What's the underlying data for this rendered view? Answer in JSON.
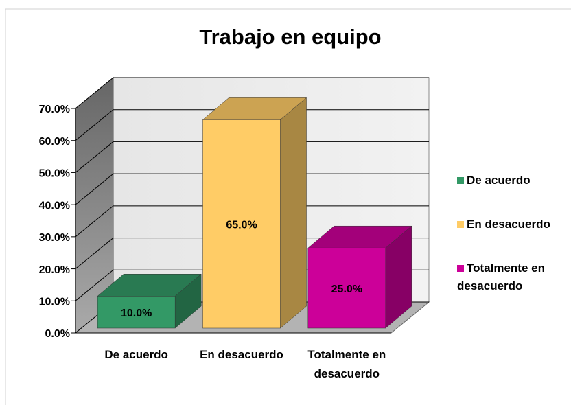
{
  "chart_data": {
    "type": "bar3d",
    "title": "Trabajo en equipo",
    "categories": [
      "De acuerdo",
      "En desacuerdo",
      "Totalmente en desacuerdo"
    ],
    "values": [
      10,
      65,
      25
    ],
    "value_labels": [
      "10.0%",
      "65.0%",
      "25.0%"
    ],
    "colors": [
      "#339966",
      "#ffcc66",
      "#cc0099"
    ],
    "ylim": [
      0,
      70
    ],
    "yticks": [
      {
        "value": 0,
        "label": "0.0%"
      },
      {
        "value": 10,
        "label": "10.0%"
      },
      {
        "value": 20,
        "label": "20.0%"
      },
      {
        "value": 30,
        "label": "30.0%"
      },
      {
        "value": 40,
        "label": "40.0%"
      },
      {
        "value": 50,
        "label": "50.0%"
      },
      {
        "value": 60,
        "label": "60.0%"
      },
      {
        "value": 70,
        "label": "70.0%"
      }
    ],
    "grid": true,
    "legend": "right"
  }
}
